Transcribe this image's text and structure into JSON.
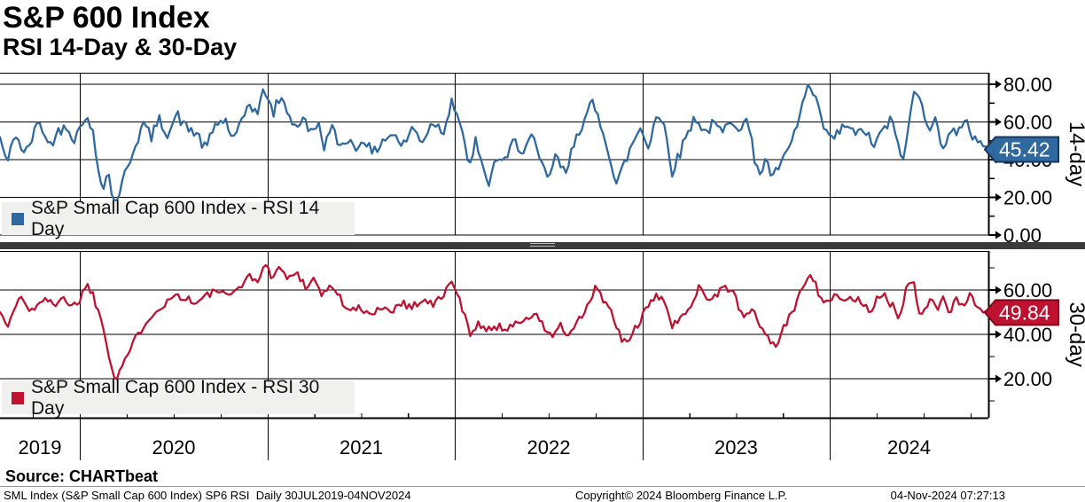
{
  "header": {
    "title": "S&P 600 Index",
    "subtitle": "RSI 14-Day & 30-Day"
  },
  "source_line": "Source: CHARTbeat",
  "status_bar": {
    "left": "SML Index (S&P Small Cap 600 Index) SP6 RSI  Daily 30JUL2019-04NOV2024",
    "center": "Copyright© 2024 Bloomberg Finance L.P.",
    "right": "04-Nov-2024 07:27:13"
  },
  "colors": {
    "grid": "#000000",
    "legend_bg": "#f0f0ee",
    "divider": "#3a3a3a",
    "rsi14": "#2f69a0",
    "rsi14_tag_border": "#16365f",
    "rsi30": "#be1230",
    "rsi30_tag_border": "#7d0a1f"
  },
  "x_axis": {
    "years": [
      "2019",
      "2020",
      "2021",
      "2022",
      "2023",
      "2024"
    ],
    "year_boundaries": [
      0.0807,
      0.2709,
      0.4601,
      0.6502,
      0.8394
    ]
  },
  "chart_data": [
    {
      "type": "line",
      "name": "RSI 14 Day",
      "legend": "S&P Small Cap 600 Index - RSI 14 Day",
      "axis_title": "14-day",
      "color": "#2f69a0",
      "tag_border": "#16365f",
      "last_value": 45.42,
      "last_label": "45.42",
      "ylim": [
        0,
        86.1
      ],
      "yticks": [
        {
          "v": 80,
          "label": "80.00"
        },
        {
          "v": 60,
          "label": "60.00"
        },
        {
          "v": 40,
          "label": "40.00"
        },
        {
          "v": 20,
          "label": "20.00"
        },
        {
          "v": 0,
          "label": "0.00"
        }
      ],
      "yticks_minor": [
        70,
        50,
        30,
        10
      ],
      "points": [
        [
          0,
          52
        ],
        [
          0.007,
          38
        ],
        [
          0.016,
          54
        ],
        [
          0.025,
          42
        ],
        [
          0.04,
          61
        ],
        [
          0.049,
          47
        ],
        [
          0.058,
          54
        ],
        [
          0.067,
          59
        ],
        [
          0.076,
          50
        ],
        [
          0.085,
          64
        ],
        [
          0.094,
          54
        ],
        [
          0.1,
          33
        ],
        [
          0.106,
          26
        ],
        [
          0.109,
          35
        ],
        [
          0.115,
          17
        ],
        [
          0.121,
          23
        ],
        [
          0.127,
          33
        ],
        [
          0.136,
          47
        ],
        [
          0.145,
          59
        ],
        [
          0.153,
          52
        ],
        [
          0.161,
          61
        ],
        [
          0.17,
          54
        ],
        [
          0.179,
          64
        ],
        [
          0.188,
          57
        ],
        [
          0.199,
          54
        ],
        [
          0.208,
          45
        ],
        [
          0.218,
          59
        ],
        [
          0.228,
          61
        ],
        [
          0.236,
          50
        ],
        [
          0.243,
          57
        ],
        [
          0.252,
          71
        ],
        [
          0.26,
          64
        ],
        [
          0.268,
          78
        ],
        [
          0.276,
          64
        ],
        [
          0.283,
          73
        ],
        [
          0.291,
          66
        ],
        [
          0.299,
          57
        ],
        [
          0.306,
          62
        ],
        [
          0.314,
          54
        ],
        [
          0.321,
          60
        ],
        [
          0.328,
          48
        ],
        [
          0.336,
          56
        ],
        [
          0.344,
          47
        ],
        [
          0.352,
          52
        ],
        [
          0.359,
          45
        ],
        [
          0.368,
          52
        ],
        [
          0.377,
          42
        ],
        [
          0.386,
          50
        ],
        [
          0.397,
          54
        ],
        [
          0.408,
          47
        ],
        [
          0.417,
          57
        ],
        [
          0.427,
          50
        ],
        [
          0.439,
          61
        ],
        [
          0.448,
          54
        ],
        [
          0.457,
          72
        ],
        [
          0.466,
          59
        ],
        [
          0.474,
          35
        ],
        [
          0.481,
          50
        ],
        [
          0.489,
          33
        ],
        [
          0.495,
          28
        ],
        [
          0.503,
          42
        ],
        [
          0.511,
          38
        ],
        [
          0.52,
          50
        ],
        [
          0.529,
          45
        ],
        [
          0.538,
          52
        ],
        [
          0.547,
          38
        ],
        [
          0.554,
          30
        ],
        [
          0.563,
          42
        ],
        [
          0.572,
          31
        ],
        [
          0.583,
          54
        ],
        [
          0.592,
          61
        ],
        [
          0.599,
          70
        ],
        [
          0.608,
          59
        ],
        [
          0.615,
          47
        ],
        [
          0.623,
          26
        ],
        [
          0.632,
          38
        ],
        [
          0.641,
          50
        ],
        [
          0.648,
          57
        ],
        [
          0.656,
          47
        ],
        [
          0.664,
          64
        ],
        [
          0.673,
          57
        ],
        [
          0.68,
          34
        ],
        [
          0.687,
          42
        ],
        [
          0.695,
          54
        ],
        [
          0.704,
          63
        ],
        [
          0.713,
          54
        ],
        [
          0.722,
          59
        ],
        [
          0.731,
          54
        ],
        [
          0.74,
          62
        ],
        [
          0.749,
          57
        ],
        [
          0.756,
          61
        ],
        [
          0.763,
          42
        ],
        [
          0.769,
          33
        ],
        [
          0.776,
          40
        ],
        [
          0.782,
          29
        ],
        [
          0.789,
          38
        ],
        [
          0.796,
          42
        ],
        [
          0.804,
          54
        ],
        [
          0.812,
          69
        ],
        [
          0.818,
          80
        ],
        [
          0.825,
          71
        ],
        [
          0.832,
          59
        ],
        [
          0.841,
          50
        ],
        [
          0.848,
          54
        ],
        [
          0.857,
          59
        ],
        [
          0.866,
          52
        ],
        [
          0.874,
          57
        ],
        [
          0.883,
          47
        ],
        [
          0.892,
          54
        ],
        [
          0.901,
          61
        ],
        [
          0.908,
          50
        ],
        [
          0.915,
          39
        ],
        [
          0.924,
          77
        ],
        [
          0.933,
          69
        ],
        [
          0.94,
          57
        ],
        [
          0.946,
          64
        ],
        [
          0.953,
          42
        ],
        [
          0.96,
          57
        ],
        [
          0.969,
          54
        ],
        [
          0.978,
          59
        ],
        [
          0.985,
          52
        ],
        [
          0.992,
          50
        ],
        [
          1,
          45.42
        ]
      ]
    },
    {
      "type": "line",
      "name": "RSI 30 Day",
      "legend": "S&P Small Cap 600 Index - RSI 30 Day",
      "axis_title": "30-day",
      "color": "#be1230",
      "tag_border": "#7d0a1f",
      "last_value": 49.84,
      "last_label": "49.84",
      "ylim": [
        2.4,
        77.6
      ],
      "yticks": [
        {
          "v": 60,
          "label": "60.00"
        },
        {
          "v": 40,
          "label": "40.00"
        },
        {
          "v": 20,
          "label": "20.00"
        }
      ],
      "yticks_minor": [
        70,
        50,
        30,
        10
      ],
      "points": [
        [
          0,
          50
        ],
        [
          0.009,
          44
        ],
        [
          0.02,
          58
        ],
        [
          0.03,
          50
        ],
        [
          0.043,
          56
        ],
        [
          0.054,
          53
        ],
        [
          0.063,
          58
        ],
        [
          0.072,
          52
        ],
        [
          0.081,
          56
        ],
        [
          0.087,
          63
        ],
        [
          0.094,
          58
        ],
        [
          0.103,
          46
        ],
        [
          0.111,
          30
        ],
        [
          0.117,
          19
        ],
        [
          0.124,
          27
        ],
        [
          0.133,
          34
        ],
        [
          0.142,
          42
        ],
        [
          0.151,
          48
        ],
        [
          0.161,
          52
        ],
        [
          0.17,
          55
        ],
        [
          0.179,
          58
        ],
        [
          0.19,
          56
        ],
        [
          0.199,
          54
        ],
        [
          0.211,
          58
        ],
        [
          0.222,
          60
        ],
        [
          0.231,
          56
        ],
        [
          0.242,
          62
        ],
        [
          0.251,
          66
        ],
        [
          0.26,
          64
        ],
        [
          0.267,
          71
        ],
        [
          0.274,
          67
        ],
        [
          0.283,
          70
        ],
        [
          0.291,
          65
        ],
        [
          0.3,
          68
        ],
        [
          0.309,
          62
        ],
        [
          0.317,
          65
        ],
        [
          0.326,
          58
        ],
        [
          0.336,
          62
        ],
        [
          0.346,
          55
        ],
        [
          0.355,
          50
        ],
        [
          0.364,
          52
        ],
        [
          0.373,
          48
        ],
        [
          0.384,
          53
        ],
        [
          0.395,
          50
        ],
        [
          0.405,
          55
        ],
        [
          0.416,
          52
        ],
        [
          0.427,
          56
        ],
        [
          0.439,
          53
        ],
        [
          0.448,
          58
        ],
        [
          0.457,
          63
        ],
        [
          0.466,
          55
        ],
        [
          0.475,
          40
        ],
        [
          0.484,
          46
        ],
        [
          0.493,
          41
        ],
        [
          0.502,
          44
        ],
        [
          0.513,
          42
        ],
        [
          0.522,
          47
        ],
        [
          0.531,
          45
        ],
        [
          0.54,
          50
        ],
        [
          0.549,
          44
        ],
        [
          0.558,
          39
        ],
        [
          0.567,
          44
        ],
        [
          0.576,
          38
        ],
        [
          0.585,
          46
        ],
        [
          0.594,
          52
        ],
        [
          0.603,
          61
        ],
        [
          0.612,
          55
        ],
        [
          0.62,
          48
        ],
        [
          0.628,
          38
        ],
        [
          0.635,
          36
        ],
        [
          0.644,
          44
        ],
        [
          0.653,
          50
        ],
        [
          0.662,
          56
        ],
        [
          0.671,
          58
        ],
        [
          0.68,
          43
        ],
        [
          0.689,
          47
        ],
        [
          0.698,
          53
        ],
        [
          0.707,
          62
        ],
        [
          0.716,
          56
        ],
        [
          0.725,
          58
        ],
        [
          0.734,
          62
        ],
        [
          0.742,
          59
        ],
        [
          0.751,
          47
        ],
        [
          0.76,
          52
        ],
        [
          0.768,
          45
        ],
        [
          0.777,
          38
        ],
        [
          0.785,
          35
        ],
        [
          0.793,
          43
        ],
        [
          0.8,
          48
        ],
        [
          0.809,
          58
        ],
        [
          0.818,
          68
        ],
        [
          0.823,
          65
        ],
        [
          0.83,
          57
        ],
        [
          0.838,
          55
        ],
        [
          0.845,
          57
        ],
        [
          0.852,
          54
        ],
        [
          0.859,
          57
        ],
        [
          0.867,
          56
        ],
        [
          0.874,
          53
        ],
        [
          0.881,
          50
        ],
        [
          0.888,
          59
        ],
        [
          0.897,
          56
        ],
        [
          0.904,
          52
        ],
        [
          0.909,
          46
        ],
        [
          0.917,
          60
        ],
        [
          0.924,
          67
        ],
        [
          0.931,
          46
        ],
        [
          0.937,
          53
        ],
        [
          0.943,
          56
        ],
        [
          0.949,
          51
        ],
        [
          0.954,
          59
        ],
        [
          0.96,
          48
        ],
        [
          0.966,
          57
        ],
        [
          0.974,
          54
        ],
        [
          0.981,
          57
        ],
        [
          0.988,
          53
        ],
        [
          0.994,
          51
        ],
        [
          1,
          49.84
        ]
      ]
    }
  ]
}
